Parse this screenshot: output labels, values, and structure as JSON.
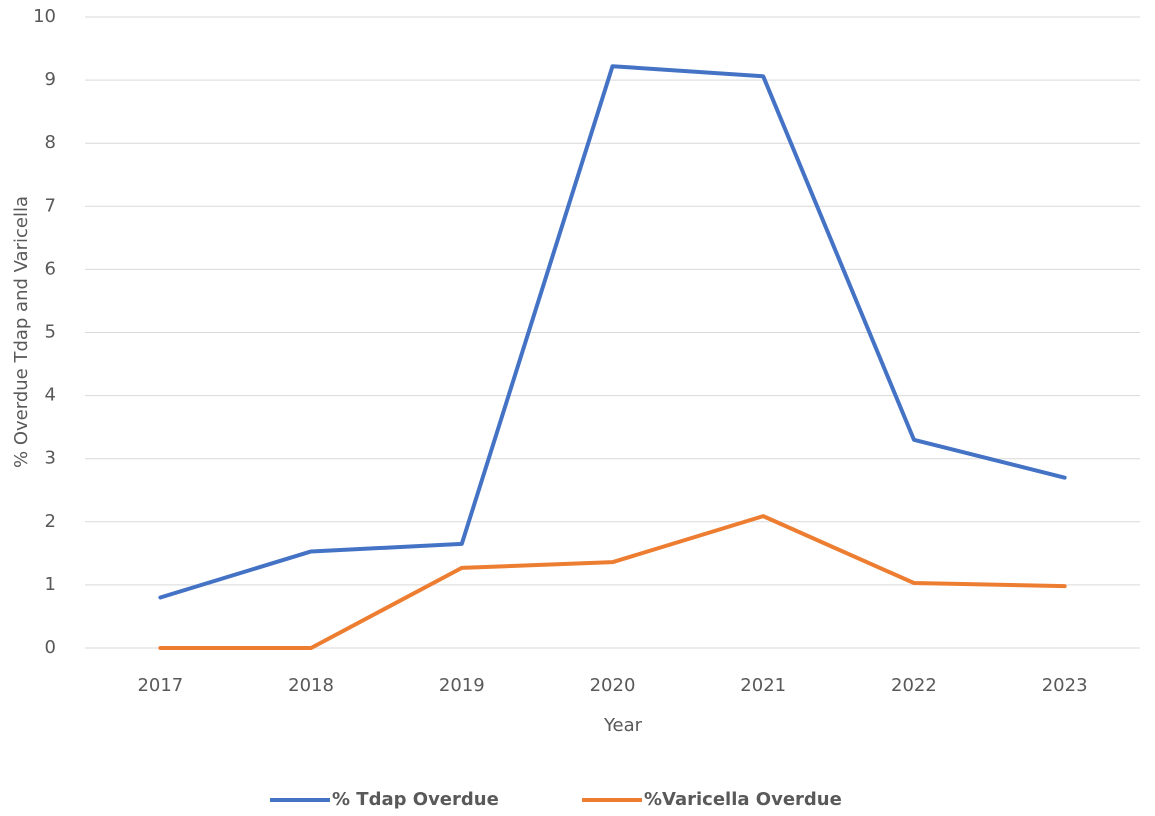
{
  "chart_data": {
    "type": "line",
    "x_label": "Year",
    "y_label": "% Overdue Tdap and Varicella",
    "categories": [
      "2017",
      "2018",
      "2019",
      "2020",
      "2021",
      "2022",
      "2023"
    ],
    "series": [
      {
        "name": "% Tdap Overdue",
        "color": "#4472c4",
        "values": [
          0.8,
          1.53,
          1.65,
          9.22,
          9.06,
          3.3,
          2.7
        ]
      },
      {
        "name": "%Varicella Overdue",
        "color": "#ed7d31",
        "values": [
          0,
          0,
          1.27,
          1.36,
          2.09,
          1.03,
          0.98
        ]
      }
    ],
    "ylim": [
      0,
      10
    ],
    "yticks": [
      0,
      1,
      2,
      3,
      4,
      5,
      6,
      7,
      8,
      9,
      10
    ],
    "grid": true,
    "legend": "bottom"
  }
}
